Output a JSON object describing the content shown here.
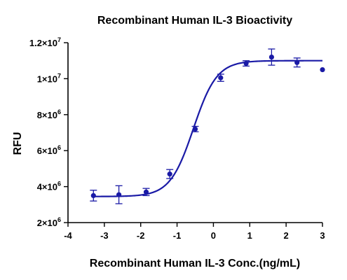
{
  "chart_data": {
    "type": "scatter",
    "title": "Recombinant Human IL-3 Bioactivity",
    "xlabel": "Recombinant Human IL-3 Conc.(ng/mL)",
    "ylabel": "RFU",
    "xlim": [
      -4,
      3
    ],
    "ylim": [
      2000000,
      12000000
    ],
    "x_ticks": [
      -4,
      -3,
      -2,
      -1,
      0,
      1,
      2,
      3
    ],
    "x_tick_labels": [
      "-4",
      "-3",
      "-2",
      "-1",
      "0",
      "1",
      "2",
      "3"
    ],
    "y_ticks": [
      2000000,
      4000000,
      6000000,
      8000000,
      10000000,
      12000000
    ],
    "y_tick_labels": [
      {
        "mantissa": "2×10",
        "exp": "6"
      },
      {
        "mantissa": "4×10",
        "exp": "6"
      },
      {
        "mantissa": "6×10",
        "exp": "6"
      },
      {
        "mantissa": "8×10",
        "exp": "6"
      },
      {
        "mantissa": "1×10",
        "exp": "7"
      },
      {
        "mantissa": "1.2×10",
        "exp": "7"
      }
    ],
    "marker_color": "#1a1aa6",
    "line_color": "#1a1aa6",
    "points": [
      {
        "x": -3.3,
        "y": 3500000,
        "err": 300000
      },
      {
        "x": -2.6,
        "y": 3550000,
        "err": 500000
      },
      {
        "x": -1.85,
        "y": 3700000,
        "err": 200000
      },
      {
        "x": -1.2,
        "y": 4700000,
        "err": 250000
      },
      {
        "x": -0.5,
        "y": 7200000,
        "err": 150000
      },
      {
        "x": 0.2,
        "y": 10050000,
        "err": 200000
      },
      {
        "x": 0.9,
        "y": 10850000,
        "err": 150000
      },
      {
        "x": 1.6,
        "y": 11200000,
        "err": 450000
      },
      {
        "x": 2.3,
        "y": 10900000,
        "err": 250000
      },
      {
        "x": 3.0,
        "y": 10500000,
        "err": 0
      }
    ],
    "fit_curve": {
      "model": "4PL",
      "bottom": 3450000,
      "top": 11000000,
      "log_ec50": -0.55,
      "hill": 1.35,
      "x_range": [
        -3.3,
        3.0
      ]
    },
    "grid": false,
    "legend": "none"
  }
}
